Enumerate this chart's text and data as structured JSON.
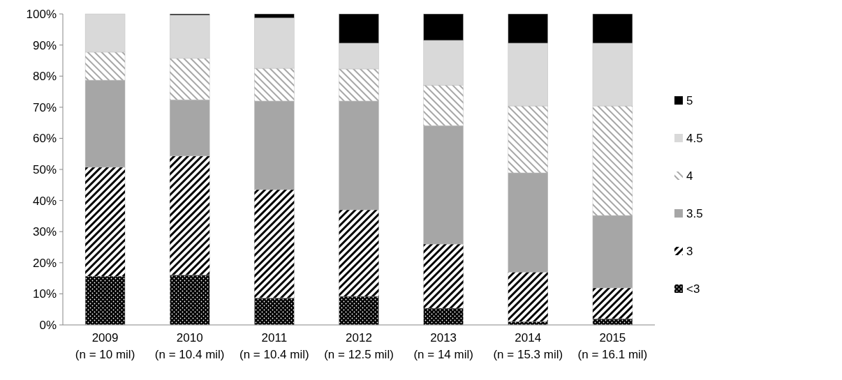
{
  "chart_data": {
    "type": "bar",
    "stacked": true,
    "categories": [
      "2009\n(n = 10 mil)",
      "2010\n(n = 10.4 mil)",
      "2011\n(n = 10.4 mil)",
      "2012\n(n = 12.5 mil)",
      "2013\n(n = 14 mil)",
      "2014\n(n = 15.3 mil)",
      "2015\n(n = 16.1 mil)"
    ],
    "series": [
      {
        "name": "<3",
        "color": "#000000",
        "values": [
          15.7,
          16.1,
          8.7,
          9.2,
          5.4,
          1.1,
          2
        ]
      },
      {
        "name": "3",
        "color": "#ffffff",
        "values": [
          35,
          38.2,
          34.8,
          27.8,
          20.6,
          15.9,
          9.9
        ]
      },
      {
        "name": "3.5",
        "color": "#a6a6a6",
        "values": [
          28,
          18.1,
          28.5,
          35,
          38.1,
          31.9,
          23.3
        ]
      },
      {
        "name": "4",
        "color": "#ffffff",
        "values": [
          9,
          13.3,
          10.5,
          10.3,
          13,
          21.5,
          35.2
        ]
      },
      {
        "name": "4.5",
        "color": "#d9d9d9",
        "values": [
          12.3,
          13.9,
          16.2,
          8.3,
          14.4,
          20.2,
          20.2
        ]
      },
      {
        "name": "5",
        "color": "#000000",
        "values": [
          0,
          0.4,
          1.3,
          9.4,
          8.5,
          9.4,
          9.4
        ]
      }
    ],
    "ylim": [
      0,
      100
    ],
    "yticks": [
      {
        "value": 0,
        "label": "0%"
      },
      {
        "value": 10,
        "label": "10%"
      },
      {
        "value": 20,
        "label": "20%"
      },
      {
        "value": 30,
        "label": "30%"
      },
      {
        "value": 40,
        "label": "40%"
      },
      {
        "value": 50,
        "label": "50%"
      },
      {
        "value": 60,
        "label": "60%"
      },
      {
        "value": 70,
        "label": "70%"
      },
      {
        "value": 80,
        "label": "80%"
      },
      {
        "value": 90,
        "label": "90%"
      },
      {
        "value": 100,
        "label": "100%"
      }
    ],
    "grid": false,
    "legend": "right"
  }
}
